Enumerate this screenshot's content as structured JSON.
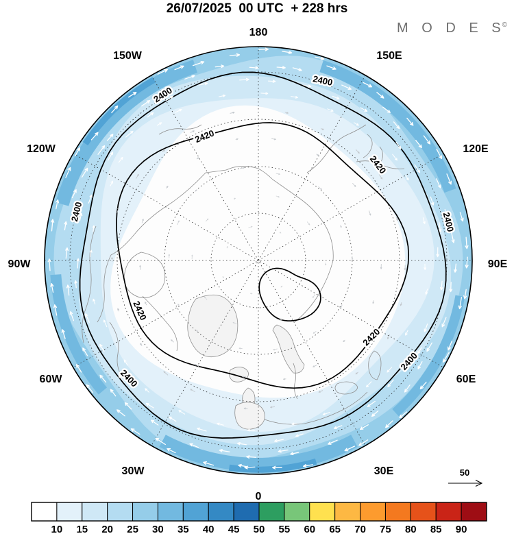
{
  "header": {
    "title": "26/07/2025  00 UTC  + 228 hrs",
    "brand": "M O D E S",
    "brand_mark": "©"
  },
  "map": {
    "longitude_labels": [
      "180",
      "150W",
      "150E",
      "120W",
      "120E",
      "90W",
      "90E",
      "60W",
      "60E",
      "30W",
      "30E",
      "0"
    ],
    "contour_label_outer": "2400",
    "contour_label_inner": "2420",
    "wind_scale_label": "50"
  },
  "chart_data": {
    "type": "heatmap",
    "title": "26/07/2025 00 UTC + 228 hrs",
    "projection": "north polar stereographic",
    "colorbar": {
      "orientation": "horizontal",
      "position": "bottom",
      "boundary_labels": [
        10,
        15,
        20,
        25,
        30,
        35,
        40,
        45,
        50,
        55,
        60,
        65,
        70,
        75,
        80,
        85,
        90
      ],
      "colors": [
        "#ffffff",
        "#e3f1fa",
        "#cfe8f6",
        "#b4dcf1",
        "#95cde9",
        "#72b9e0",
        "#51a3d5",
        "#3489c4",
        "#1f6cb0",
        "#2d9e60",
        "#78c679",
        "#ffe14f",
        "#fdb843",
        "#fd9b2e",
        "#f4791f",
        "#e6521a",
        "#ca2417",
        "#9e0d14"
      ]
    },
    "contours": {
      "labeled_values": [
        2400,
        2420
      ]
    },
    "wind_scale_reference": 50,
    "longitude_ticks": [
      "180",
      "150E",
      "120E",
      "90E",
      "60E",
      "30E",
      "0",
      "30W",
      "60W",
      "90W",
      "120W",
      "150W"
    ]
  }
}
